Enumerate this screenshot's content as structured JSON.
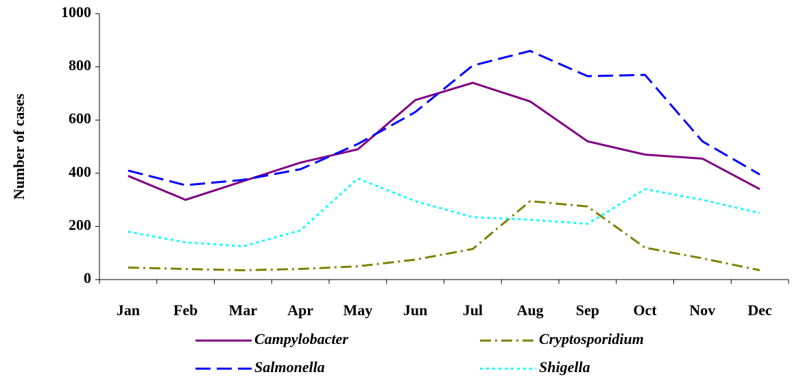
{
  "chart_data": {
    "type": "line",
    "y_label": "Number of cases",
    "categories": [
      "Jan",
      "Feb",
      "Mar",
      "Apr",
      "May",
      "Jun",
      "Jul",
      "Aug",
      "Sep",
      "Oct",
      "Nov",
      "Dec"
    ],
    "series": [
      {
        "name": "Campylobacter",
        "color": "#800080",
        "dash": "solid",
        "values": [
          390,
          300,
          370,
          440,
          490,
          675,
          740,
          670,
          520,
          470,
          455,
          340
        ]
      },
      {
        "name": "Cryptosporidium",
        "color": "#808000",
        "dash": "dashdot",
        "values": [
          45,
          40,
          35,
          40,
          50,
          75,
          115,
          295,
          275,
          120,
          80,
          35
        ]
      },
      {
        "name": "Salmonella",
        "color": "#0000ff",
        "dash": "dashed",
        "values": [
          410,
          355,
          375,
          415,
          510,
          630,
          805,
          860,
          765,
          770,
          520,
          395
        ]
      },
      {
        "name": "Shigella",
        "color": "#00ffff",
        "dash": "dotted",
        "values": [
          180,
          140,
          125,
          185,
          380,
          295,
          235,
          225,
          210,
          340,
          300,
          250
        ]
      }
    ],
    "ylim": [
      0,
      1000
    ],
    "yticks": [
      0,
      200,
      400,
      600,
      800,
      1000
    ],
    "legend": "bottom"
  }
}
